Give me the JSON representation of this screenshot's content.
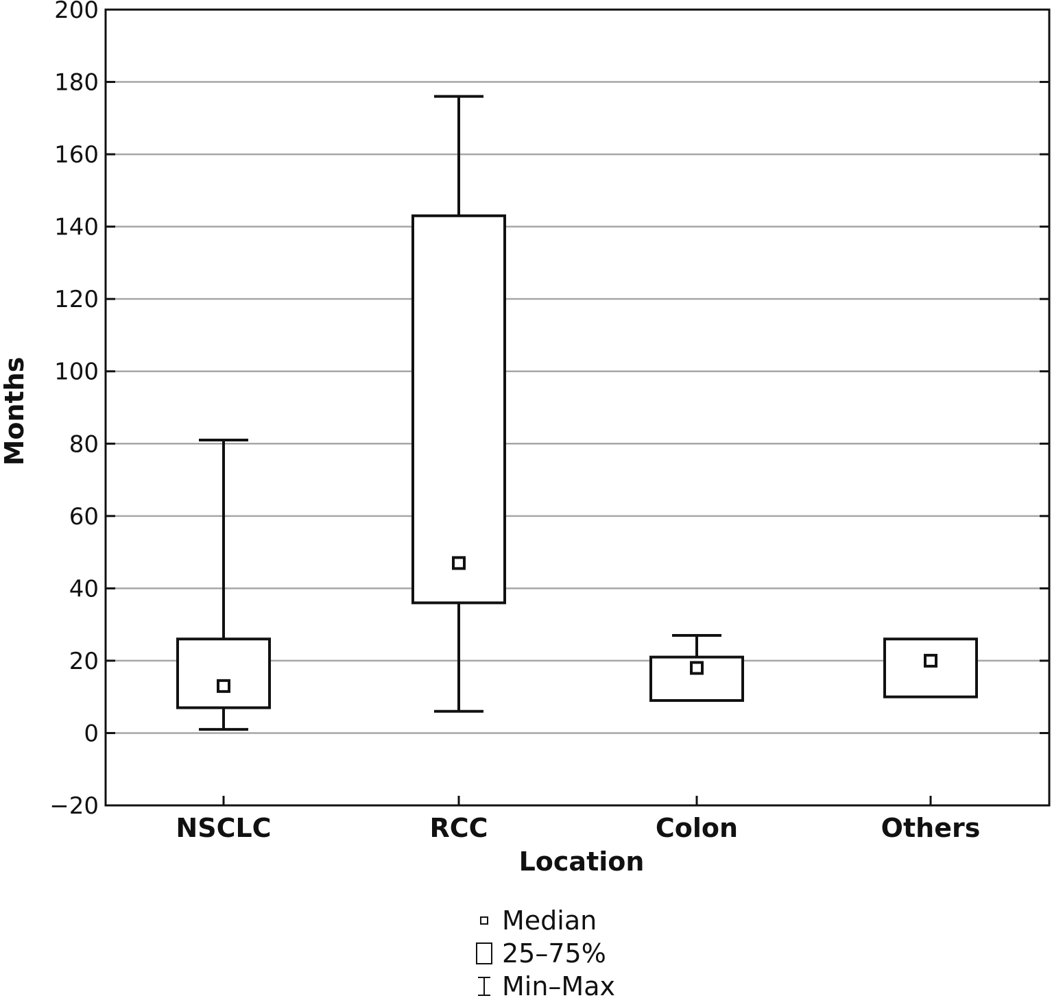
{
  "chart_data": {
    "type": "box",
    "xlabel": "Location",
    "ylabel": "Months",
    "ylim": [
      -20,
      200
    ],
    "yticks": [
      -20,
      0,
      20,
      40,
      60,
      80,
      100,
      120,
      140,
      160,
      180,
      200
    ],
    "grid": true,
    "categories": [
      "NSCLC",
      "RCC",
      "Colon",
      "Others"
    ],
    "boxes": [
      {
        "category": "NSCLC",
        "min": 1,
        "q1": 7,
        "median": 13,
        "q3": 26,
        "max": 81
      },
      {
        "category": "RCC",
        "min": 6,
        "q1": 36,
        "median": 47,
        "q3": 143,
        "max": 176
      },
      {
        "category": "Colon",
        "min": 9,
        "q1": 9,
        "median": 18,
        "q3": 21,
        "max": 27
      },
      {
        "category": "Others",
        "min": 10,
        "q1": 10,
        "median": 20,
        "q3": 26,
        "max": 26
      }
    ],
    "legend": {
      "position": "bottom-center",
      "items": [
        {
          "symbol": "median-marker",
          "label": "Median"
        },
        {
          "symbol": "box",
          "label": "25–75%"
        },
        {
          "symbol": "whisker",
          "label": "Min–Max"
        }
      ]
    },
    "colors": {
      "line": "#111111",
      "grid": "#a6a6a6",
      "background": "#ffffff"
    }
  }
}
